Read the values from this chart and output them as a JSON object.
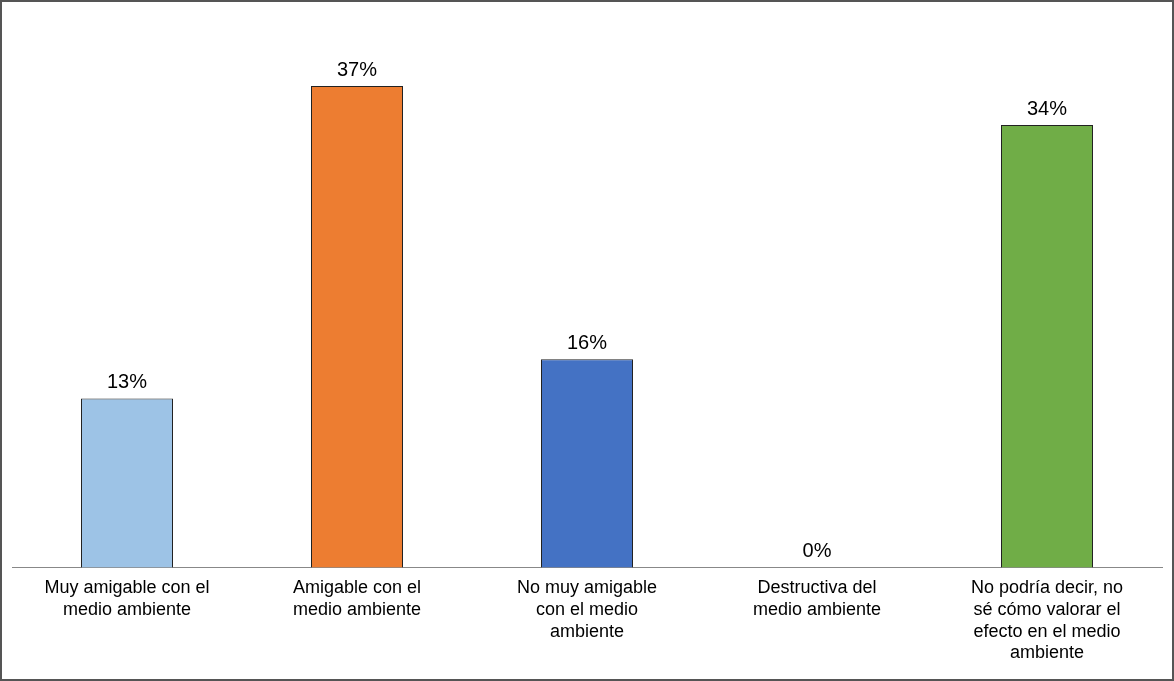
{
  "chart_data": {
    "type": "bar",
    "categories": [
      "Muy amigable con el medio ambiente",
      "Amigable con el medio ambiente",
      "No muy amigable con el medio ambiente",
      "Destructiva del medio ambiente",
      "No podría decir, no sé cómo valorar el efecto en el medio ambiente"
    ],
    "values": [
      13,
      37,
      16,
      0,
      34
    ],
    "colors": [
      "#9dc3e6",
      "#ed7d31",
      "#4472c4",
      "#a5a5a5",
      "#70ad47"
    ],
    "value_labels": [
      "13%",
      "37%",
      "16%",
      "0%",
      "34%"
    ],
    "legend": false
  }
}
